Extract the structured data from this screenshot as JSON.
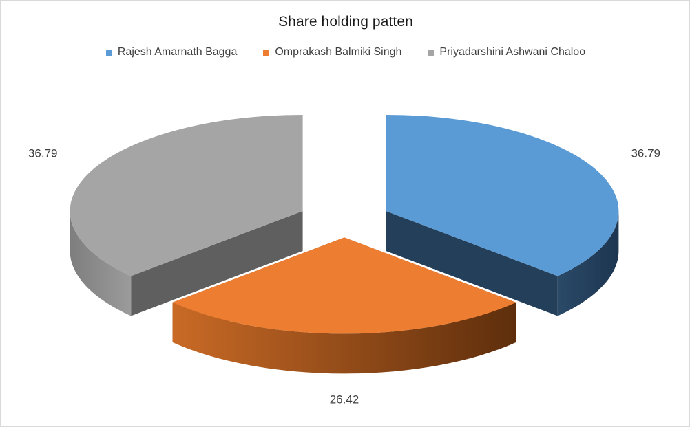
{
  "chart_data": {
    "type": "pie",
    "title": "Share holding patten",
    "legend_position": "top",
    "categories": [
      "Rajesh Amarnath Bagga",
      "Omprakash Balmiki Singh",
      "Priyadarshini Ashwani Chaloo"
    ],
    "values": [
      36.79,
      26.42,
      36.79
    ],
    "data_labels": [
      "36.79",
      "26.42",
      "36.79"
    ],
    "colors": [
      "#5b9bd5",
      "#ed7d31",
      "#a5a5a5"
    ],
    "style": "3d-exploded"
  }
}
